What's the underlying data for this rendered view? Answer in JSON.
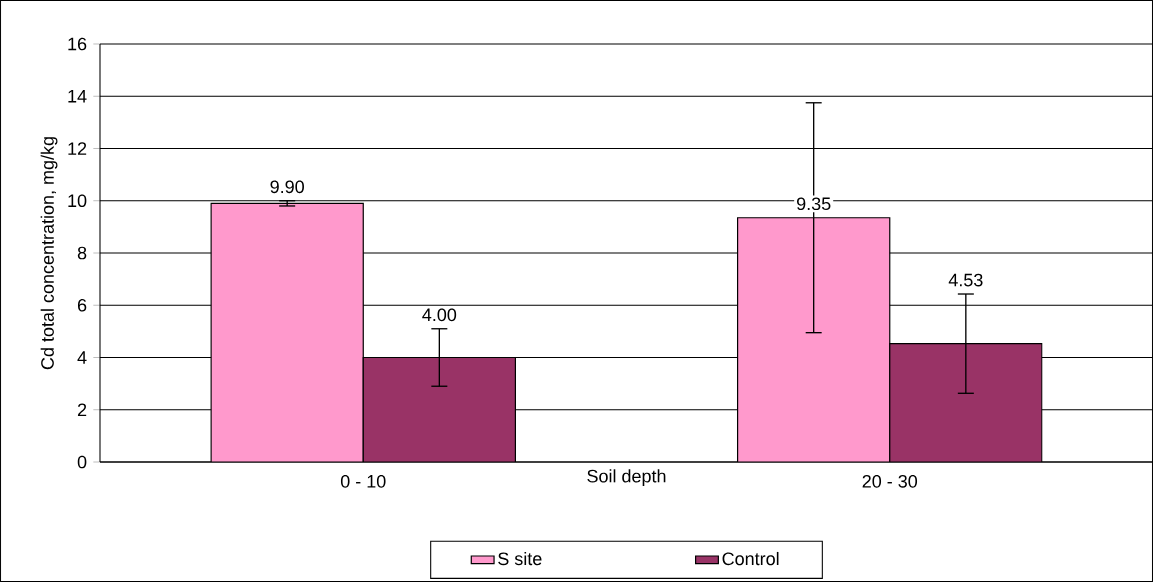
{
  "chart_data": {
    "type": "bar",
    "categories": [
      "0 - 10",
      "20 - 30"
    ],
    "xlabel": "Soil depth",
    "ylabel": "Cd total concentration, mg/kg",
    "ylim": [
      0,
      16
    ],
    "yticks": [
      0,
      2,
      4,
      6,
      8,
      10,
      12,
      14,
      16
    ],
    "grid": "y",
    "legend": "bottom",
    "series": [
      {
        "name": "S site",
        "color": "#ff99cc",
        "values": [
          9.9,
          9.35
        ],
        "errors": [
          0.1,
          4.4
        ],
        "value_labels": [
          "9.90",
          "9.35"
        ]
      },
      {
        "name": "Control",
        "color": "#993366",
        "values": [
          4.0,
          4.53
        ],
        "errors": [
          1.1,
          1.9
        ],
        "value_labels": [
          "4.00",
          "4.53"
        ]
      }
    ]
  }
}
